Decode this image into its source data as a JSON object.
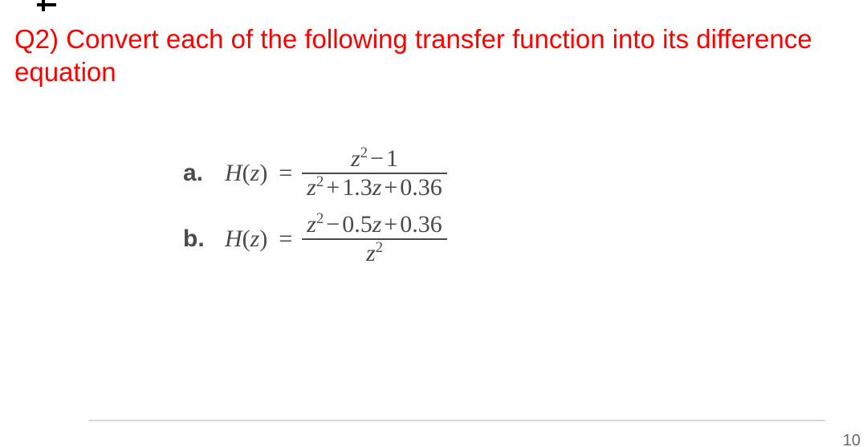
{
  "title": "Q2) Convert each of the following transfer function into its difference equation",
  "colors": {
    "title": "#ff0000",
    "math": "#4a4a4a",
    "background": "#ffffff",
    "frac_bar": "#4a4a4a",
    "shadow": "#d9d9d9"
  },
  "equations": {
    "a": {
      "label": "a.",
      "lhs": "H(z)",
      "numerator": "z² − 1",
      "denominator": "z² + 1.3z + 0.36"
    },
    "b": {
      "label": "b.",
      "lhs": "H(z)",
      "numerator": "z² − 0.5z + 0.36",
      "denominator": "z²"
    }
  },
  "page_number": "10",
  "typography": {
    "title_fontsize": 33,
    "math_fontsize": 30,
    "label_fontweight": "bold"
  }
}
